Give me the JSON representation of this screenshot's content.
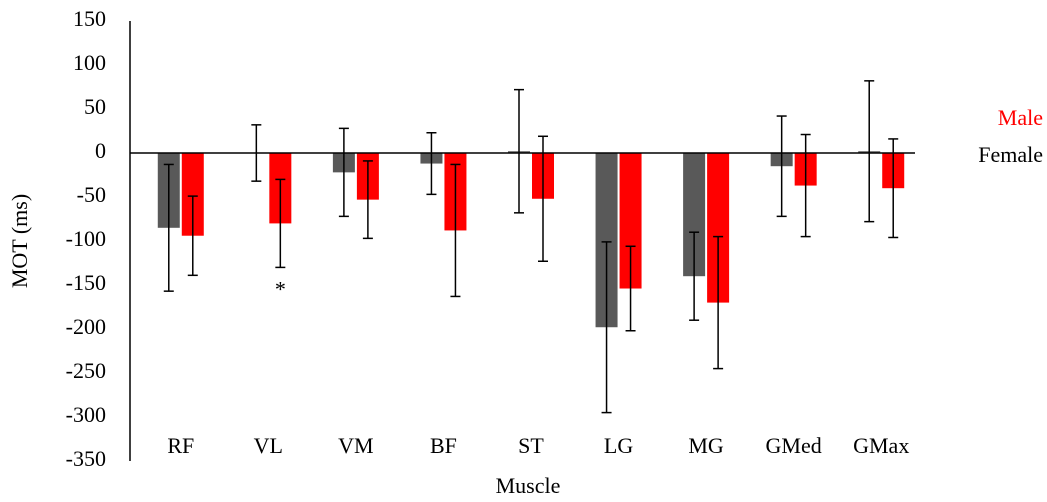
{
  "chart_data": {
    "type": "bar",
    "x_label": "Muscle",
    "y_label": "MOT (ms)",
    "categories": [
      "RF",
      "VL",
      "VM",
      "BF",
      "ST",
      "LG",
      "MG",
      "GMed",
      "GMax"
    ],
    "series": [
      {
        "name": "Female",
        "color": "#595959",
        "values": [
          -85,
          0,
          -22,
          -12,
          2,
          -198,
          -140,
          -15,
          2
        ],
        "errors": [
          72,
          32,
          50,
          35,
          70,
          97,
          50,
          57,
          80
        ]
      },
      {
        "name": "Male",
        "color": "#ff0000",
        "values": [
          -94,
          -80,
          -53,
          -88,
          -52,
          -154,
          -170,
          -37,
          -40
        ],
        "errors": [
          45,
          50,
          44,
          75,
          71,
          48,
          75,
          58,
          56
        ]
      }
    ],
    "annotation": "*",
    "ylim": [
      -350,
      150
    ],
    "yticks": [
      -350,
      -300,
      -250,
      -200,
      -150,
      -100,
      -50,
      0,
      50,
      100,
      150
    ],
    "grid": false
  }
}
